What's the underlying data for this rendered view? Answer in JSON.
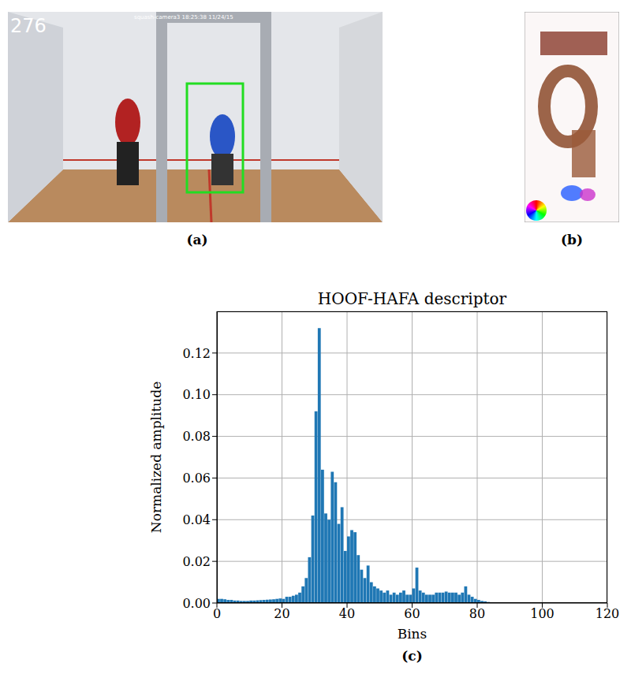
{
  "panel_labels": [
    "(a)",
    "(b)",
    "(c)"
  ],
  "image_a": {
    "frame_number": "276",
    "timestamp": "squash-camera3 18:25:38 11/24/15"
  },
  "chart_data": {
    "type": "bar",
    "title": "HOOF-HAFA descriptor",
    "x_label": "Bins",
    "y_label": "Normalized amplitude",
    "color": "#1f77b4",
    "grid": true,
    "xlim": [
      0,
      120
    ],
    "xticks": [
      0,
      20,
      40,
      60,
      80,
      100,
      120
    ],
    "ylim": [
      0,
      0.14
    ],
    "yticks": [
      {
        "value": 0,
        "label": "0.00"
      },
      {
        "value": 0.02,
        "label": "0.02"
      },
      {
        "value": 0.04,
        "label": "0.04"
      },
      {
        "value": 0.06,
        "label": "0.06"
      },
      {
        "value": 0.08,
        "label": "0.08"
      },
      {
        "value": 0.1,
        "label": "0.10"
      },
      {
        "value": 0.12,
        "label": "0.12"
      }
    ],
    "bins": [
      0,
      1,
      2,
      3,
      4,
      5,
      6,
      7,
      8,
      9,
      10,
      11,
      12,
      13,
      14,
      15,
      16,
      17,
      18,
      19,
      20,
      21,
      22,
      23,
      24,
      25,
      26,
      27,
      28,
      29,
      30,
      31,
      32,
      33,
      34,
      35,
      36,
      37,
      38,
      39,
      40,
      41,
      42,
      43,
      44,
      45,
      46,
      47,
      48,
      49,
      50,
      51,
      52,
      53,
      54,
      55,
      56,
      57,
      58,
      59,
      60,
      61,
      62,
      63,
      64,
      65,
      66,
      67,
      68,
      69,
      70,
      71,
      72,
      73,
      74,
      75,
      76,
      77,
      78,
      79,
      80,
      81,
      82,
      83,
      84,
      85,
      86,
      87,
      88,
      89,
      90,
      91,
      92,
      93,
      94,
      95,
      96,
      97,
      98,
      99,
      100,
      101,
      102,
      103,
      104,
      105,
      106,
      107,
      108,
      109,
      110,
      111,
      112,
      113,
      114,
      115,
      116,
      117,
      118,
      119,
      120
    ],
    "values": [
      0.002,
      0.002,
      0.0018,
      0.0015,
      0.0015,
      0.0012,
      0.0012,
      0.001,
      0.001,
      0.001,
      0.0012,
      0.0012,
      0.0013,
      0.0014,
      0.0015,
      0.0016,
      0.0017,
      0.0018,
      0.002,
      0.0022,
      0.002,
      0.003,
      0.003,
      0.0035,
      0.004,
      0.005,
      0.008,
      0.012,
      0.022,
      0.042,
      0.092,
      0.132,
      0.064,
      0.043,
      0.04,
      0.063,
      0.058,
      0.038,
      0.046,
      0.025,
      0.032,
      0.035,
      0.034,
      0.023,
      0.016,
      0.012,
      0.018,
      0.01,
      0.008,
      0.007,
      0.006,
      0.005,
      0.006,
      0.004,
      0.005,
      0.004,
      0.005,
      0.006,
      0.004,
      0.004,
      0.007,
      0.017,
      0.006,
      0.005,
      0.004,
      0.004,
      0.004,
      0.005,
      0.005,
      0.005,
      0.0055,
      0.005,
      0.005,
      0.005,
      0.004,
      0.005,
      0.008,
      0.004,
      0.003,
      0.002,
      0.0015,
      0.001,
      0.0008,
      0.0005,
      0,
      0,
      0,
      0,
      0,
      0,
      0,
      0,
      0,
      0,
      0,
      0,
      0,
      0,
      0,
      0,
      0,
      0,
      0,
      0,
      0,
      0,
      0,
      0,
      0,
      0,
      0,
      0,
      0,
      0,
      0,
      0,
      0,
      0,
      0,
      0
    ]
  }
}
